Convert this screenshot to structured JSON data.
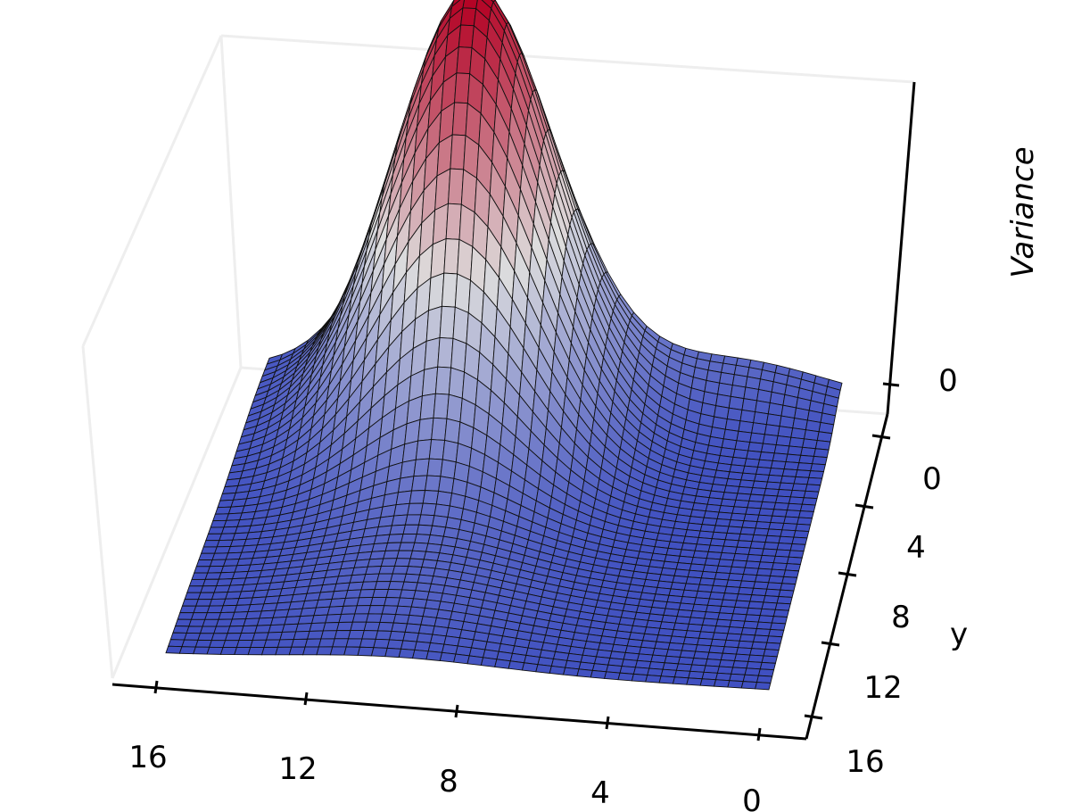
{
  "chart_data": {
    "type": "surface",
    "title": "",
    "zlabel": "Variance",
    "xlabel": "",
    "ylabel": "y",
    "x_ticks": [
      "16",
      "12",
      "8",
      "4",
      "0"
    ],
    "y_ticks": [
      "0",
      "4",
      "8",
      "12",
      "16"
    ],
    "z_ticks": [
      "0"
    ],
    "xlim": [
      0,
      16
    ],
    "ylim": [
      0,
      16
    ],
    "grid": false,
    "colormap": "coolwarm",
    "colors": {
      "low": "#3b4cc0",
      "mid": "#dddddd",
      "high": "#b40426"
    },
    "surface_description": {
      "peak_at": {
        "x": 10,
        "y": 2
      },
      "peak_level": 1.0,
      "base_level": 0.0,
      "edge_level": 0.05,
      "secondary_bump_at": {
        "x": 3,
        "y": 0
      },
      "secondary_bump_level": 0.08
    }
  }
}
